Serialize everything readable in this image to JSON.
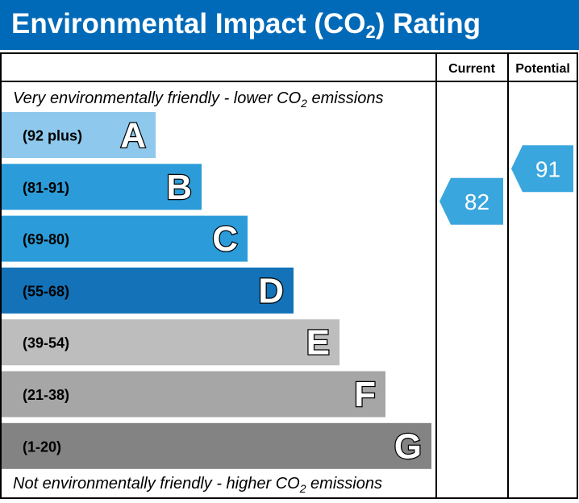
{
  "header": {
    "title_pre": "Environmental Impact (CO",
    "title_sub": "2",
    "title_post": ") Rating",
    "background_color": "#006ab8"
  },
  "chart_data": {
    "type": "bar",
    "columns": {
      "current": "Current",
      "potential": "Potential"
    },
    "top_note": {
      "pre": "Very environmentally friendly - lower CO",
      "sub": "2",
      "post": " emissions"
    },
    "bottom_note": {
      "pre": "Not environmentally friendly - higher CO",
      "sub": "2",
      "post": " emissions"
    },
    "bands": [
      {
        "letter": "A",
        "range": "(92 plus)",
        "min": 92,
        "max": 100,
        "color": "#8ec8ec"
      },
      {
        "letter": "B",
        "range": "(81-91)",
        "min": 81,
        "max": 91,
        "color": "#2b9cd9"
      },
      {
        "letter": "C",
        "range": "(69-80)",
        "min": 69,
        "max": 80,
        "color": "#2b9cd9"
      },
      {
        "letter": "D",
        "range": "(55-68)",
        "min": 55,
        "max": 68,
        "color": "#1372b8"
      },
      {
        "letter": "E",
        "range": "(39-54)",
        "min": 39,
        "max": 54,
        "color": "#bdbdbd"
      },
      {
        "letter": "F",
        "range": "(21-38)",
        "min": 21,
        "max": 38,
        "color": "#a6a6a6"
      },
      {
        "letter": "G",
        "range": "(1-20)",
        "min": 1,
        "max": 20,
        "color": "#838383"
      }
    ],
    "current": {
      "value": 82,
      "label": "82",
      "color": "#3aa6de"
    },
    "potential": {
      "value": 91,
      "label": "91",
      "color": "#3aa6de"
    }
  }
}
